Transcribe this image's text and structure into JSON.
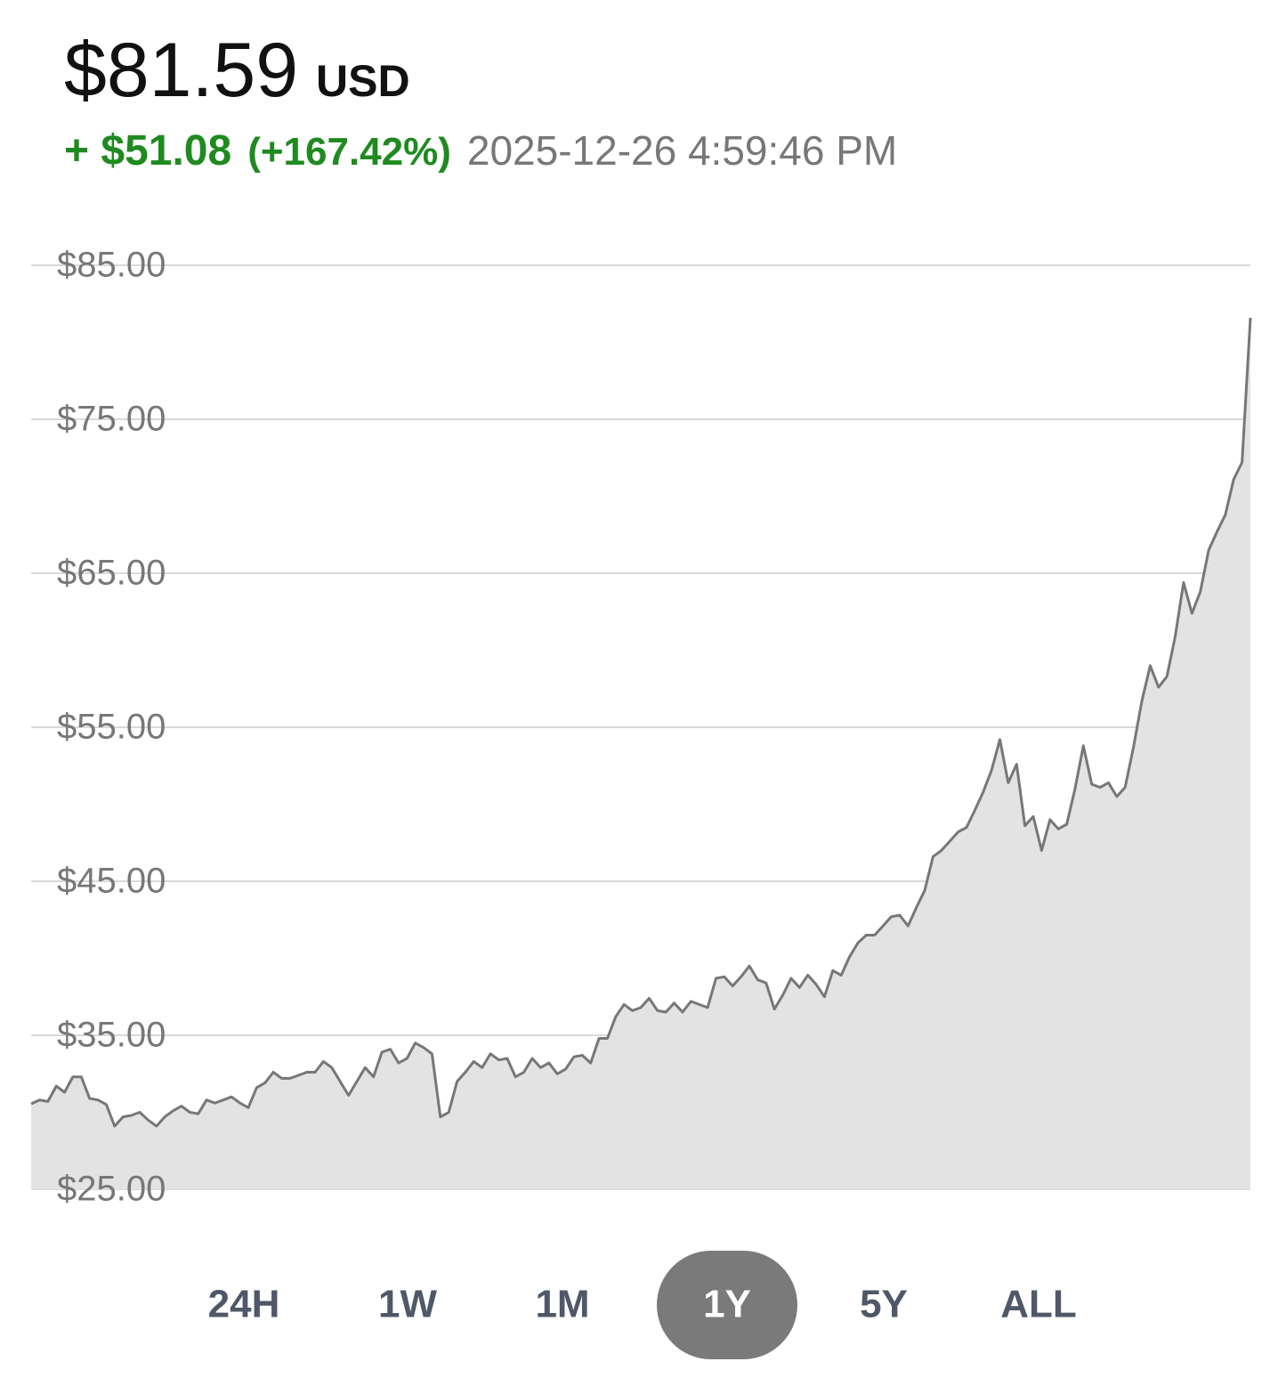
{
  "header": {
    "price": "$81.59",
    "currency": "USD",
    "change": "+ $51.08",
    "change_percent": "(+167.42%)",
    "timestamp": "2025-12-26 4:59:46 PM"
  },
  "chart_data": {
    "type": "area",
    "line_color": "#777777",
    "fill_color": "#e3e3e3",
    "grid": true,
    "ylim": [
      25,
      85
    ],
    "yticks": [
      {
        "value": 25,
        "label": "$25.00"
      },
      {
        "value": 35,
        "label": "$35.00"
      },
      {
        "value": 45,
        "label": "$45.00"
      },
      {
        "value": 55,
        "label": "$55.00"
      },
      {
        "value": 65,
        "label": "$65.00"
      },
      {
        "value": 75,
        "label": "$75.00"
      },
      {
        "value": 85,
        "label": "$85.00"
      }
    ],
    "values": [
      30.55,
      30.8,
      30.7,
      31.7,
      31.3,
      32.3,
      32.3,
      30.9,
      30.8,
      30.5,
      29.1,
      29.7,
      29.8,
      30.0,
      29.5,
      29.1,
      29.7,
      30.1,
      30.4,
      30.0,
      29.9,
      30.8,
      30.6,
      30.8,
      31.0,
      30.6,
      30.3,
      31.6,
      31.9,
      32.6,
      32.2,
      32.2,
      32.4,
      32.6,
      32.6,
      33.3,
      32.9,
      32.0,
      31.1,
      32.0,
      32.9,
      32.3,
      33.9,
      34.1,
      33.2,
      33.5,
      34.5,
      34.2,
      33.8,
      29.7,
      30.0,
      32.0,
      32.6,
      33.3,
      32.9,
      33.8,
      33.4,
      33.5,
      32.3,
      32.6,
      33.5,
      32.9,
      33.2,
      32.5,
      32.8,
      33.6,
      33.7,
      33.2,
      34.8,
      34.8,
      36.2,
      37.0,
      36.6,
      36.8,
      37.4,
      36.6,
      36.5,
      37.1,
      36.5,
      37.2,
      37.0,
      36.8,
      38.7,
      38.8,
      38.2,
      38.8,
      39.5,
      38.6,
      38.4,
      36.7,
      37.6,
      38.7,
      38.1,
      38.9,
      38.3,
      37.5,
      39.2,
      38.9,
      40.1,
      41.0,
      41.5,
      41.5,
      42.1,
      42.7,
      42.8,
      42.1,
      43.3,
      44.4,
      46.6,
      47.0,
      47.6,
      48.2,
      48.5,
      49.6,
      50.8,
      52.2,
      54.2,
      51.4,
      52.6,
      48.6,
      49.2,
      47.0,
      49.0,
      48.4,
      48.7,
      51.0,
      53.8,
      51.3,
      51.1,
      51.4,
      50.5,
      51.1,
      53.7,
      56.7,
      59.0,
      57.6,
      58.3,
      60.9,
      64.4,
      62.4,
      63.8,
      66.5,
      67.7,
      68.8,
      71.1,
      72.2,
      81.59
    ]
  },
  "ranges": {
    "buttons": [
      "24H",
      "1W",
      "1M",
      "1Y",
      "5Y",
      "ALL"
    ],
    "selected_index": 3,
    "selected_color": "#7a7a7a"
  }
}
